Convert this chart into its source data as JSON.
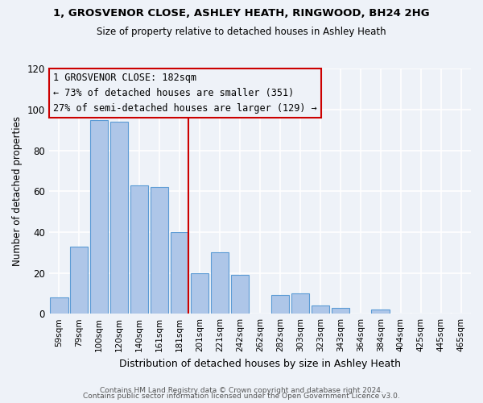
{
  "title1": "1, GROSVENOR CLOSE, ASHLEY HEATH, RINGWOOD, BH24 2HG",
  "title2": "Size of property relative to detached houses in Ashley Heath",
  "xlabel": "Distribution of detached houses by size in Ashley Heath",
  "ylabel": "Number of detached properties",
  "bin_labels": [
    "59sqm",
    "79sqm",
    "100sqm",
    "120sqm",
    "140sqm",
    "161sqm",
    "181sqm",
    "201sqm",
    "221sqm",
    "242sqm",
    "262sqm",
    "282sqm",
    "303sqm",
    "323sqm",
    "343sqm",
    "364sqm",
    "384sqm",
    "404sqm",
    "425sqm",
    "445sqm",
    "465sqm"
  ],
  "bar_heights": [
    8,
    33,
    95,
    94,
    63,
    62,
    40,
    20,
    30,
    19,
    0,
    9,
    10,
    4,
    3,
    0,
    2,
    0,
    0,
    0,
    0
  ],
  "bar_color": "#aec6e8",
  "bar_edgecolor": "#5b9bd5",
  "vline_index": 6,
  "vline_color": "#cc0000",
  "ylim": [
    0,
    120
  ],
  "yticks": [
    0,
    20,
    40,
    60,
    80,
    100,
    120
  ],
  "annotation_title": "1 GROSVENOR CLOSE: 182sqm",
  "annotation_line1": "← 73% of detached houses are smaller (351)",
  "annotation_line2": "27% of semi-detached houses are larger (129) →",
  "annotation_box_edgecolor": "#cc0000",
  "footnote1": "Contains HM Land Registry data © Crown copyright and database right 2024.",
  "footnote2": "Contains public sector information licensed under the Open Government Licence v3.0.",
  "background_color": "#eef2f8"
}
